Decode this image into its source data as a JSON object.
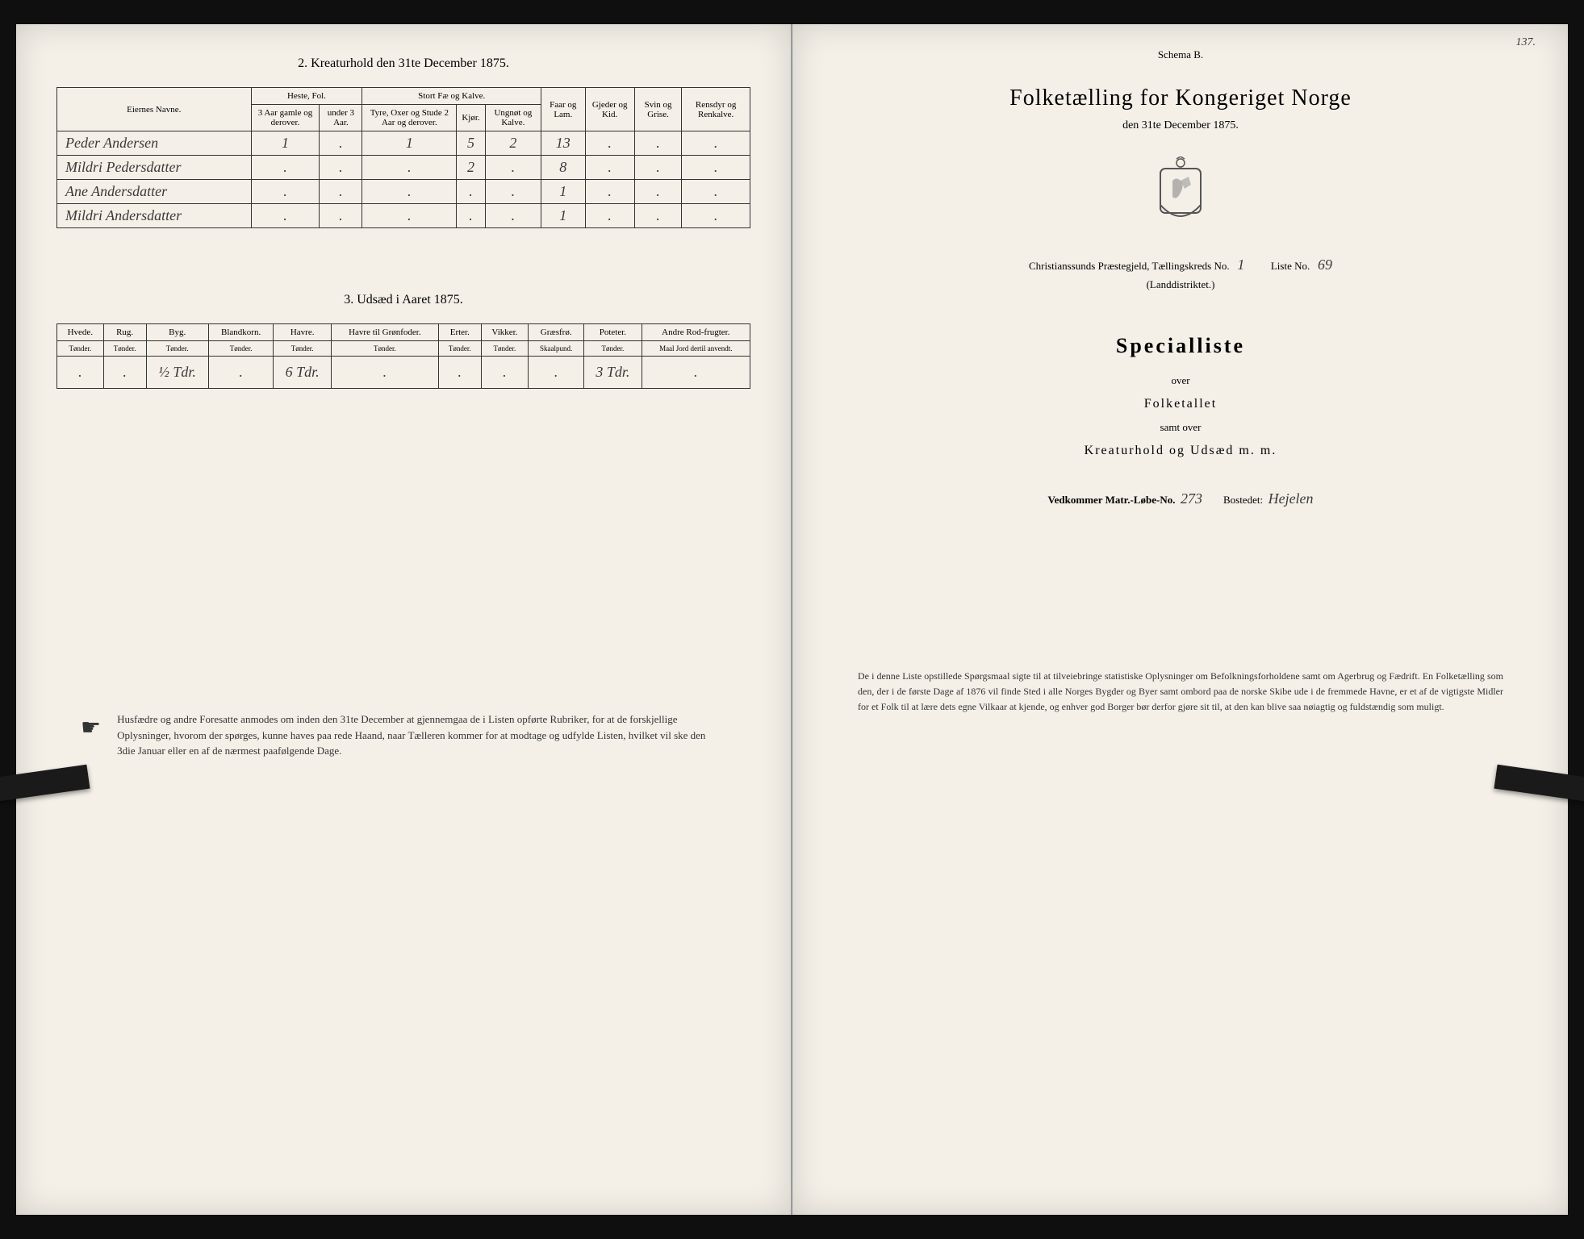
{
  "left": {
    "table2": {
      "title": "2.  Kreaturhold den 31te December 1875.",
      "groupHeaders": {
        "names": "Eiernes Navne.",
        "horses": "Heste, Fol.",
        "cattle": "Stort Fæ og Kalve."
      },
      "subHeaders": {
        "h1": "3 Aar gamle og derover.",
        "h2": "under 3 Aar.",
        "c1": "Tyre, Oxer og Stude 2 Aar og derover.",
        "c2": "Kjør.",
        "c3": "Ungnøt og Kalve.",
        "sheep": "Faar og Lam.",
        "goats": "Gjeder og Kid.",
        "pigs": "Svin og Grise.",
        "reindeer": "Rensdyr og Renkalve."
      },
      "rows": [
        {
          "name": "Peder Andersen",
          "vals": [
            "1",
            ".",
            "1",
            "5",
            "2",
            "13",
            ".",
            ".",
            "."
          ]
        },
        {
          "name": "Mildri Pedersdatter",
          "vals": [
            ".",
            ".",
            ".",
            "2",
            ".",
            "8",
            ".",
            ".",
            "."
          ]
        },
        {
          "name": "Ane Andersdatter",
          "vals": [
            ".",
            ".",
            ".",
            ".",
            ".",
            "1",
            ".",
            ".",
            "."
          ]
        },
        {
          "name": "Mildri Andersdatter",
          "vals": [
            ".",
            ".",
            ".",
            ".",
            ".",
            "1",
            ".",
            ".",
            "."
          ]
        }
      ]
    },
    "table3": {
      "title": "3.  Udsæd i Aaret 1875.",
      "headers": [
        {
          "top": "Hvede.",
          "bot": "Tønder."
        },
        {
          "top": "Rug.",
          "bot": "Tønder."
        },
        {
          "top": "Byg.",
          "bot": "Tønder."
        },
        {
          "top": "Blandkorn.",
          "bot": "Tønder."
        },
        {
          "top": "Havre.",
          "bot": "Tønder."
        },
        {
          "top": "Havre til Grønfoder.",
          "bot": "Tønder."
        },
        {
          "top": "Erter.",
          "bot": "Tønder."
        },
        {
          "top": "Vikker.",
          "bot": "Tønder."
        },
        {
          "top": "Græsfrø.",
          "bot": "Skaalpund."
        },
        {
          "top": "Poteter.",
          "bot": "Tønder."
        },
        {
          "top": "Andre Rod-frugter.",
          "bot": "Maal Jord dertil anvendt."
        }
      ],
      "row": [
        ".",
        ".",
        "½ Tdr.",
        ".",
        "6 Tdr.",
        ".",
        ".",
        ".",
        ".",
        "3 Tdr.",
        "."
      ]
    },
    "instruction": "Husfædre og andre Foresatte anmodes om inden den 31te December at gjennemgaa de i Listen opførte Rubriker, for at de forskjellige Oplysninger, hvorom der spørges, kunne haves paa rede Haand, naar Tælleren kommer for at modtage og udfylde Listen, hvilket vil ske den 3die Januar eller en af de nærmest paafølgende Dage."
  },
  "right": {
    "pageNum": "137.",
    "schema": "Schema B.",
    "mainTitle": "Folketælling for Kongeriget Norge",
    "subDate": "den 31te December 1875.",
    "district": {
      "prefix": "Christianssunds Præstegjeld,  Tællingskreds No.",
      "kreds": "1",
      "listeLabel": "Liste No.",
      "listeNo": "69",
      "sub": "(Landdistriktet.)"
    },
    "specialliste": "Specialliste",
    "over1": "over",
    "folketallet": "Folketallet",
    "over2": "samt over",
    "kreaturhold": "Kreaturhold og Udsæd m. m.",
    "matr": {
      "label1": "Vedkommer Matr.-Løbe-No.",
      "no": "273",
      "label2": "Bostedet:",
      "bosted": "Hejelen"
    },
    "bottom": "De i denne Liste opstillede Spørgsmaal sigte til at tilveiebringe statistiske Oplysninger om Befolkningsforholdene samt om Agerbrug og Fædrift.  En Folketælling som den, der i de første Dage af 1876 vil finde Sted i alle Norges Bygder og Byer samt ombord paa de norske Skibe ude i de fremmede Havne, er et af de vigtigste Midler for et Folk til at lære dets egne Vilkaar at kjende, og enhver god Borger bør derfor gjøre sit til, at den kan blive saa nøiagtig og fuldstændig som muligt."
  },
  "colors": {
    "paper": "#f4f0e8",
    "ink": "#333333",
    "border": "#333333"
  }
}
